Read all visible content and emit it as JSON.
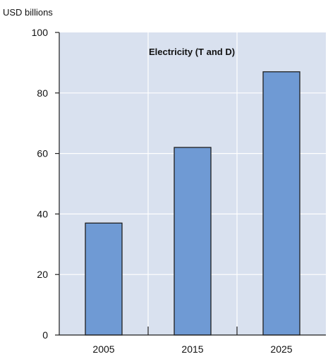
{
  "colors": {
    "plot_background": "#d9e1ef",
    "bar_fill": "#6f9ad4",
    "bar_stroke": "#1f1f1f",
    "axis": "#1f1f1f",
    "grid": "#ffffff"
  },
  "chart_data": {
    "type": "bar",
    "title": "Electricity (T and D)",
    "ylabel": "USD billions",
    "xlabel": "",
    "categories": [
      "2005",
      "2015",
      "2025"
    ],
    "values": [
      37,
      62,
      87
    ],
    "ylim": [
      0,
      100
    ],
    "yticks": [
      0,
      20,
      40,
      60,
      80,
      100
    ],
    "grid": true,
    "legend": "none"
  }
}
